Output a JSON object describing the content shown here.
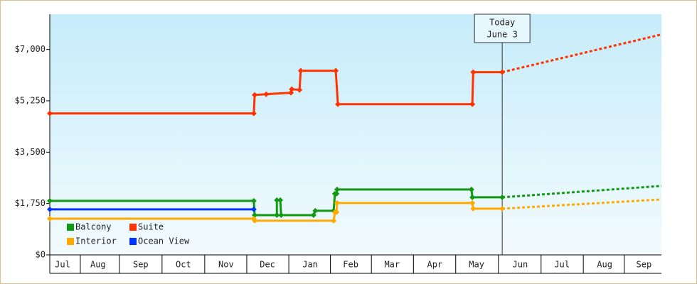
{
  "chart_data": {
    "type": "line",
    "annotation": {
      "x": 10.97,
      "lines": [
        "Today",
        "June 3"
      ]
    },
    "xlim": [
      0.37,
      14.7
    ],
    "xticks": [
      {
        "value": 0.67,
        "label": "Jul"
      },
      {
        "value": 1.5,
        "label": "Aug"
      },
      {
        "value": 2.5,
        "label": "Sep"
      },
      {
        "value": 3.5,
        "label": "Oct"
      },
      {
        "value": 4.5,
        "label": "Nov"
      },
      {
        "value": 5.47,
        "label": "Dec"
      },
      {
        "value": 6.47,
        "label": "Jan"
      },
      {
        "value": 7.42,
        "label": "Feb"
      },
      {
        "value": 8.39,
        "label": "Mar"
      },
      {
        "value": 9.39,
        "label": "Apr"
      },
      {
        "value": 10.37,
        "label": "May"
      },
      {
        "value": 11.39,
        "label": "Jun"
      },
      {
        "value": 12.37,
        "label": "Jul"
      },
      {
        "value": 13.37,
        "label": "Aug"
      },
      {
        "value": 14.29,
        "label": "Sep"
      }
    ],
    "ylim": [
      0,
      8200
    ],
    "yticks": [
      {
        "value": 0,
        "label": "$0"
      },
      {
        "value": 1750,
        "label": "$1,750"
      },
      {
        "value": 3500,
        "label": "$3,500"
      },
      {
        "value": 5250,
        "label": "$5,250"
      },
      {
        "value": 7000,
        "label": "$7,000"
      }
    ],
    "grid": false,
    "legend": "lower-left",
    "forecast_x": [
      10.97,
      14.7
    ],
    "series": [
      {
        "name": "Balcony",
        "color": "#119911",
        "x": [
          0.37,
          5.15,
          5.17,
          5.69,
          5.69,
          5.77,
          5.79,
          6.55,
          6.59,
          7.02,
          7.05,
          7.09,
          7.1,
          10.25,
          10.27,
          10.97
        ],
        "values": [
          1840,
          1840,
          1356,
          1356,
          1865,
          1865,
          1356,
          1356,
          1502,
          1502,
          2083,
          2083,
          2228,
          2228,
          1962,
          1962
        ],
        "forecast": [
          1962,
          2349
        ]
      },
      {
        "name": "Suite",
        "color": "#ff3300",
        "x": [
          0.37,
          5.15,
          5.17,
          5.44,
          6.02,
          6.04,
          6.22,
          6.25,
          7.07,
          7.12,
          10.27,
          10.29,
          10.97
        ],
        "values": [
          4820,
          4820,
          5450,
          5474,
          5523,
          5644,
          5620,
          6273,
          6273,
          5135,
          5135,
          6225,
          6225
        ],
        "forecast": [
          6225,
          7509
        ]
      },
      {
        "name": "Interior",
        "color": "#ffaa00",
        "x": [
          0.37,
          5.15,
          5.17,
          7.02,
          7.05,
          7.09,
          7.1,
          10.27,
          10.29,
          10.97
        ],
        "values": [
          1235,
          1235,
          1163,
          1163,
          1453,
          1453,
          1768,
          1768,
          1574,
          1574
        ],
        "forecast": [
          1574,
          1889
        ]
      },
      {
        "name": "Ocean View",
        "color": "#0033ff",
        "x": [
          0.37,
          5.15
        ],
        "values": [
          1550,
          1550
        ]
      }
    ]
  }
}
